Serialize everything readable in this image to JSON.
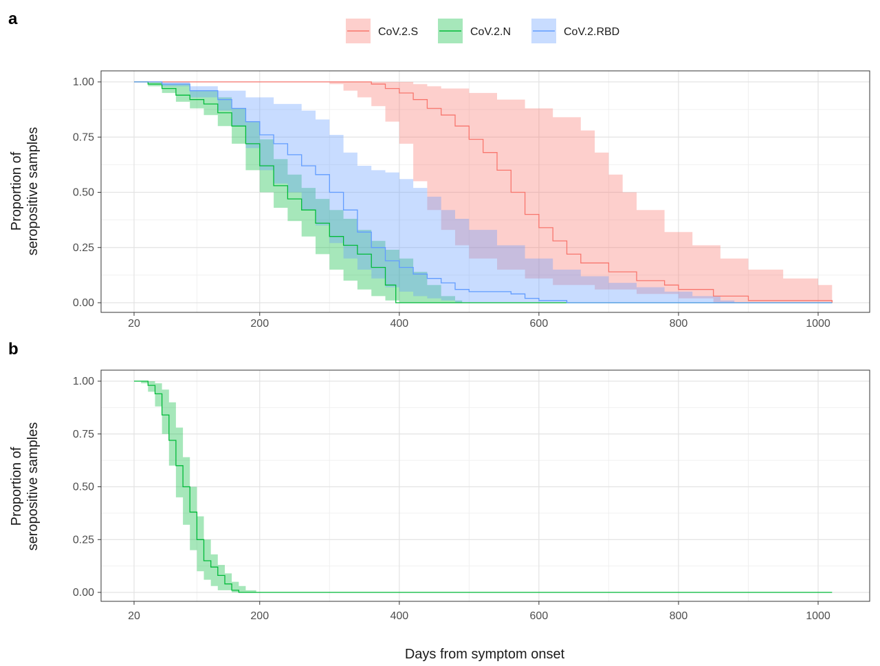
{
  "figure": {
    "x_axis_title": "Days from symptom onset",
    "legend": [
      {
        "name": "CoV.2.S",
        "color": "#F8766D"
      },
      {
        "name": "CoV.2.N",
        "color": "#00BA38"
      },
      {
        "name": "CoV.2.RBD",
        "color": "#619CFF"
      }
    ]
  },
  "chart_data": [
    {
      "panel": "a",
      "type": "line",
      "ylabel": [
        "Proportion of",
        "seropositive samples"
      ],
      "xlabel": "Days from symptom onset",
      "x_ticks": [
        20,
        200,
        400,
        600,
        800,
        1000
      ],
      "y_ticks": [
        "0.00",
        "0.25",
        "0.50",
        "0.75",
        "1.00"
      ],
      "xlim": [
        -30,
        1060
      ],
      "ylim": [
        -0.05,
        1.05
      ],
      "grid": true,
      "legend_position": "top",
      "series": [
        {
          "name": "CoV.2.S",
          "color": "#F8766D",
          "estimate": [
            [
              20,
              1
            ],
            [
              340,
              1
            ],
            [
              360,
              0.99
            ],
            [
              380,
              0.97
            ],
            [
              400,
              0.95
            ],
            [
              420,
              0.92
            ],
            [
              440,
              0.88
            ],
            [
              460,
              0.85
            ],
            [
              480,
              0.8
            ],
            [
              500,
              0.74
            ],
            [
              520,
              0.68
            ],
            [
              540,
              0.6
            ],
            [
              560,
              0.5
            ],
            [
              580,
              0.4
            ],
            [
              600,
              0.34
            ],
            [
              620,
              0.28
            ],
            [
              640,
              0.22
            ],
            [
              660,
              0.18
            ],
            [
              700,
              0.14
            ],
            [
              740,
              0.1
            ],
            [
              780,
              0.08
            ],
            [
              800,
              0.06
            ],
            [
              850,
              0.03
            ],
            [
              900,
              0.01
            ],
            [
              1020,
              0
            ]
          ],
          "lower": [
            [
              20,
              1
            ],
            [
              280,
              1
            ],
            [
              300,
              0.99
            ],
            [
              320,
              0.96
            ],
            [
              340,
              0.93
            ],
            [
              360,
              0.89
            ],
            [
              380,
              0.82
            ],
            [
              400,
              0.72
            ],
            [
              420,
              0.55
            ],
            [
              440,
              0.42
            ],
            [
              460,
              0.33
            ],
            [
              480,
              0.26
            ],
            [
              500,
              0.2
            ],
            [
              540,
              0.15
            ],
            [
              580,
              0.11
            ],
            [
              620,
              0.08
            ],
            [
              680,
              0.06
            ],
            [
              740,
              0.04
            ],
            [
              800,
              0.02
            ],
            [
              850,
              0
            ],
            [
              1020,
              0
            ]
          ],
          "upper": [
            [
              20,
              1
            ],
            [
              400,
              1
            ],
            [
              420,
              0.99
            ],
            [
              440,
              0.98
            ],
            [
              460,
              0.97
            ],
            [
              500,
              0.95
            ],
            [
              540,
              0.92
            ],
            [
              580,
              0.88
            ],
            [
              620,
              0.84
            ],
            [
              660,
              0.78
            ],
            [
              680,
              0.68
            ],
            [
              700,
              0.58
            ],
            [
              720,
              0.5
            ],
            [
              740,
              0.42
            ],
            [
              780,
              0.32
            ],
            [
              820,
              0.26
            ],
            [
              860,
              0.2
            ],
            [
              900,
              0.15
            ],
            [
              950,
              0.11
            ],
            [
              1000,
              0.08
            ],
            [
              1020,
              0.07
            ]
          ]
        },
        {
          "name": "CoV.2.N",
          "color": "#00BA38",
          "estimate": [
            [
              20,
              1
            ],
            [
              40,
              0.99
            ],
            [
              60,
              0.97
            ],
            [
              80,
              0.94
            ],
            [
              100,
              0.92
            ],
            [
              120,
              0.9
            ],
            [
              140,
              0.86
            ],
            [
              160,
              0.8
            ],
            [
              180,
              0.72
            ],
            [
              200,
              0.62
            ],
            [
              220,
              0.53
            ],
            [
              240,
              0.47
            ],
            [
              260,
              0.42
            ],
            [
              280,
              0.36
            ],
            [
              300,
              0.3
            ],
            [
              320,
              0.26
            ],
            [
              340,
              0.22
            ],
            [
              360,
              0.16
            ],
            [
              380,
              0.08
            ],
            [
              395,
              0
            ],
            [
              1020,
              0
            ]
          ],
          "lower": [
            [
              20,
              1
            ],
            [
              40,
              0.98
            ],
            [
              60,
              0.95
            ],
            [
              80,
              0.91
            ],
            [
              100,
              0.88
            ],
            [
              120,
              0.85
            ],
            [
              140,
              0.8
            ],
            [
              160,
              0.72
            ],
            [
              180,
              0.6
            ],
            [
              200,
              0.5
            ],
            [
              220,
              0.43
            ],
            [
              240,
              0.37
            ],
            [
              260,
              0.3
            ],
            [
              280,
              0.22
            ],
            [
              300,
              0.15
            ],
            [
              320,
              0.1
            ],
            [
              340,
              0.06
            ],
            [
              360,
              0.03
            ],
            [
              380,
              0.01
            ],
            [
              400,
              0
            ],
            [
              1020,
              0
            ]
          ],
          "upper": [
            [
              20,
              1
            ],
            [
              60,
              0.99
            ],
            [
              100,
              0.96
            ],
            [
              140,
              0.93
            ],
            [
              160,
              0.88
            ],
            [
              180,
              0.82
            ],
            [
              200,
              0.74
            ],
            [
              220,
              0.65
            ],
            [
              240,
              0.58
            ],
            [
              260,
              0.52
            ],
            [
              280,
              0.47
            ],
            [
              300,
              0.42
            ],
            [
              320,
              0.38
            ],
            [
              340,
              0.33
            ],
            [
              360,
              0.28
            ],
            [
              380,
              0.24
            ],
            [
              400,
              0.2
            ],
            [
              420,
              0.14
            ],
            [
              440,
              0.08
            ],
            [
              460,
              0.03
            ],
            [
              480,
              0.01
            ],
            [
              490,
              0
            ],
            [
              1020,
              0
            ]
          ]
        },
        {
          "name": "CoV.2.RBD",
          "color": "#619CFF",
          "estimate": [
            [
              20,
              1
            ],
            [
              60,
              0.99
            ],
            [
              100,
              0.96
            ],
            [
              140,
              0.92
            ],
            [
              160,
              0.88
            ],
            [
              180,
              0.82
            ],
            [
              200,
              0.76
            ],
            [
              220,
              0.72
            ],
            [
              240,
              0.67
            ],
            [
              260,
              0.62
            ],
            [
              280,
              0.58
            ],
            [
              300,
              0.5
            ],
            [
              320,
              0.42
            ],
            [
              340,
              0.32
            ],
            [
              360,
              0.25
            ],
            [
              380,
              0.19
            ],
            [
              400,
              0.16
            ],
            [
              420,
              0.13
            ],
            [
              440,
              0.11
            ],
            [
              460,
              0.09
            ],
            [
              480,
              0.06
            ],
            [
              500,
              0.05
            ],
            [
              540,
              0.05
            ],
            [
              560,
              0.04
            ],
            [
              580,
              0.02
            ],
            [
              600,
              0.01
            ],
            [
              640,
              0
            ],
            [
              1020,
              0
            ]
          ],
          "lower": [
            [
              20,
              1
            ],
            [
              60,
              0.98
            ],
            [
              100,
              0.93
            ],
            [
              140,
              0.87
            ],
            [
              160,
              0.8
            ],
            [
              180,
              0.7
            ],
            [
              200,
              0.6
            ],
            [
              220,
              0.54
            ],
            [
              240,
              0.5
            ],
            [
              260,
              0.42
            ],
            [
              280,
              0.35
            ],
            [
              300,
              0.27
            ],
            [
              320,
              0.2
            ],
            [
              340,
              0.15
            ],
            [
              360,
              0.11
            ],
            [
              380,
              0.07
            ],
            [
              400,
              0.05
            ],
            [
              420,
              0.03
            ],
            [
              440,
              0.02
            ],
            [
              460,
              0.01
            ],
            [
              480,
              0
            ],
            [
              1020,
              0
            ]
          ],
          "upper": [
            [
              20,
              1
            ],
            [
              100,
              0.98
            ],
            [
              140,
              0.96
            ],
            [
              180,
              0.93
            ],
            [
              220,
              0.9
            ],
            [
              260,
              0.87
            ],
            [
              280,
              0.83
            ],
            [
              300,
              0.76
            ],
            [
              320,
              0.68
            ],
            [
              340,
              0.62
            ],
            [
              360,
              0.6
            ],
            [
              380,
              0.59
            ],
            [
              400,
              0.56
            ],
            [
              420,
              0.52
            ],
            [
              440,
              0.48
            ],
            [
              460,
              0.42
            ],
            [
              480,
              0.38
            ],
            [
              500,
              0.33
            ],
            [
              540,
              0.26
            ],
            [
              580,
              0.2
            ],
            [
              620,
              0.15
            ],
            [
              660,
              0.12
            ],
            [
              700,
              0.09
            ],
            [
              740,
              0.07
            ],
            [
              780,
              0.05
            ],
            [
              820,
              0.03
            ],
            [
              860,
              0.01
            ],
            [
              880,
              0
            ],
            [
              1020,
              0
            ]
          ]
        }
      ]
    },
    {
      "panel": "b",
      "type": "line",
      "ylabel": [
        "Proportion of",
        "seropositive samples"
      ],
      "xlabel": "Days from symptom onset",
      "x_ticks": [
        20,
        200,
        400,
        600,
        800,
        1000
      ],
      "y_ticks": [
        "0.00",
        "0.25",
        "0.50",
        "0.75",
        "1.00"
      ],
      "xlim": [
        -30,
        1060
      ],
      "ylim": [
        -0.05,
        1.05
      ],
      "grid": true,
      "series": [
        {
          "name": "CoV.2.N",
          "color": "#00BA38",
          "estimate": [
            [
              20,
              1
            ],
            [
              30,
              1
            ],
            [
              40,
              0.98
            ],
            [
              50,
              0.94
            ],
            [
              60,
              0.84
            ],
            [
              70,
              0.72
            ],
            [
              80,
              0.6
            ],
            [
              90,
              0.5
            ],
            [
              100,
              0.38
            ],
            [
              110,
              0.25
            ],
            [
              120,
              0.15
            ],
            [
              130,
              0.12
            ],
            [
              140,
              0.08
            ],
            [
              150,
              0.04
            ],
            [
              160,
              0.01
            ],
            [
              170,
              0
            ],
            [
              1020,
              0
            ]
          ],
          "lower": [
            [
              20,
              1
            ],
            [
              30,
              0.99
            ],
            [
              40,
              0.95
            ],
            [
              50,
              0.88
            ],
            [
              60,
              0.75
            ],
            [
              70,
              0.6
            ],
            [
              80,
              0.45
            ],
            [
              90,
              0.32
            ],
            [
              100,
              0.2
            ],
            [
              110,
              0.1
            ],
            [
              120,
              0.06
            ],
            [
              130,
              0.03
            ],
            [
              140,
              0.01
            ],
            [
              160,
              0
            ],
            [
              1020,
              0
            ]
          ],
          "upper": [
            [
              20,
              1
            ],
            [
              40,
              1
            ],
            [
              50,
              0.99
            ],
            [
              60,
              0.96
            ],
            [
              70,
              0.9
            ],
            [
              80,
              0.78
            ],
            [
              90,
              0.64
            ],
            [
              100,
              0.5
            ],
            [
              110,
              0.36
            ],
            [
              120,
              0.25
            ],
            [
              130,
              0.18
            ],
            [
              140,
              0.13
            ],
            [
              150,
              0.09
            ],
            [
              160,
              0.05
            ],
            [
              170,
              0.03
            ],
            [
              180,
              0.01
            ],
            [
              195,
              0
            ],
            [
              1020,
              0
            ]
          ]
        }
      ]
    }
  ]
}
